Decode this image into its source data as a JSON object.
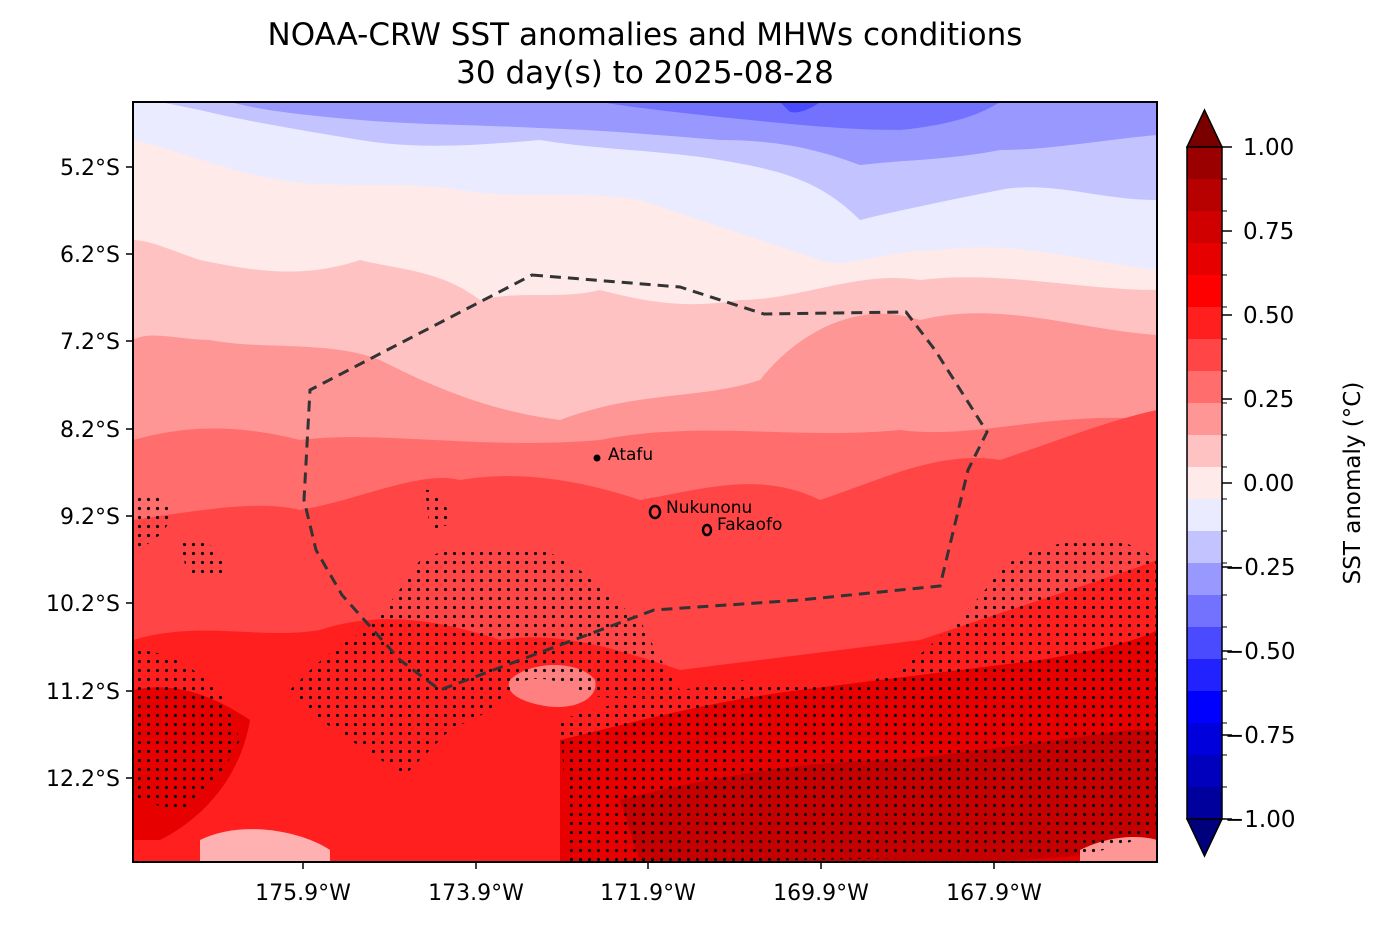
{
  "title": {
    "line1": "NOAA-CRW SST anomalies and MHWs conditions",
    "line2": "30 day(s) to 2025-08-28"
  },
  "map": {
    "lat_ticks": [
      "5.2°S",
      "6.2°S",
      "7.2°S",
      "8.2°S",
      "9.2°S",
      "10.2°S",
      "11.2°S",
      "12.2°S"
    ],
    "lon_ticks": [
      "175.9°W",
      "173.9°W",
      "171.9°W",
      "169.9°W",
      "167.9°W"
    ],
    "places": [
      {
        "name": "Atafu"
      },
      {
        "name": "Nukunonu"
      },
      {
        "name": "Fakaofo"
      }
    ],
    "hatch_meaning": "MHWs conditions"
  },
  "colorbar": {
    "label": "SST anomaly (°C)",
    "tick_labels": [
      "1.00",
      "0.75",
      "0.50",
      "0.25",
      "0.00",
      "−0.25",
      "−0.50",
      "−0.75",
      "−1.00"
    ],
    "min": -1.0,
    "max": 1.0,
    "colors_top_to_bottom": [
      "#9b0000",
      "#b70000",
      "#d10000",
      "#e60000",
      "#ff0000",
      "#ff1f1f",
      "#ff4545",
      "#ff6d6d",
      "#ff9696",
      "#ffc2c2",
      "#ffeaea",
      "#ebebff",
      "#c3c3ff",
      "#9898ff",
      "#7272ff",
      "#4a4aff",
      "#2222ff",
      "#0000ff",
      "#0000dd",
      "#0000bd",
      "#00009d"
    ],
    "extend_max_color": "#7a0000",
    "extend_min_color": "#00007d"
  }
}
